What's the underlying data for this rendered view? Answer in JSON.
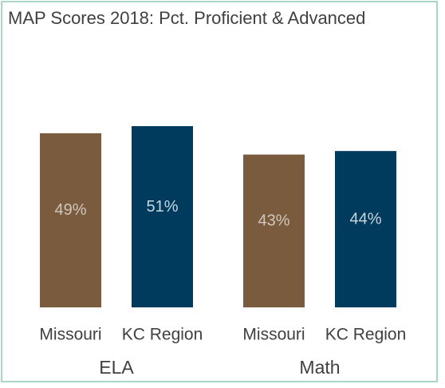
{
  "chart_data": {
    "type": "bar",
    "title": "MAP Scores 2018: Pct. Proficient & Advanced",
    "categories": [
      "ELA",
      "Math"
    ],
    "series": [
      {
        "name": "Missouri",
        "color": "#7b5b3d",
        "values": [
          49,
          43
        ],
        "value_labels": [
          "49%",
          "43%"
        ]
      },
      {
        "name": "KC Region",
        "color": "#003a5c",
        "values": [
          51,
          44
        ],
        "value_labels": [
          "51%",
          "44%"
        ]
      }
    ]
  }
}
